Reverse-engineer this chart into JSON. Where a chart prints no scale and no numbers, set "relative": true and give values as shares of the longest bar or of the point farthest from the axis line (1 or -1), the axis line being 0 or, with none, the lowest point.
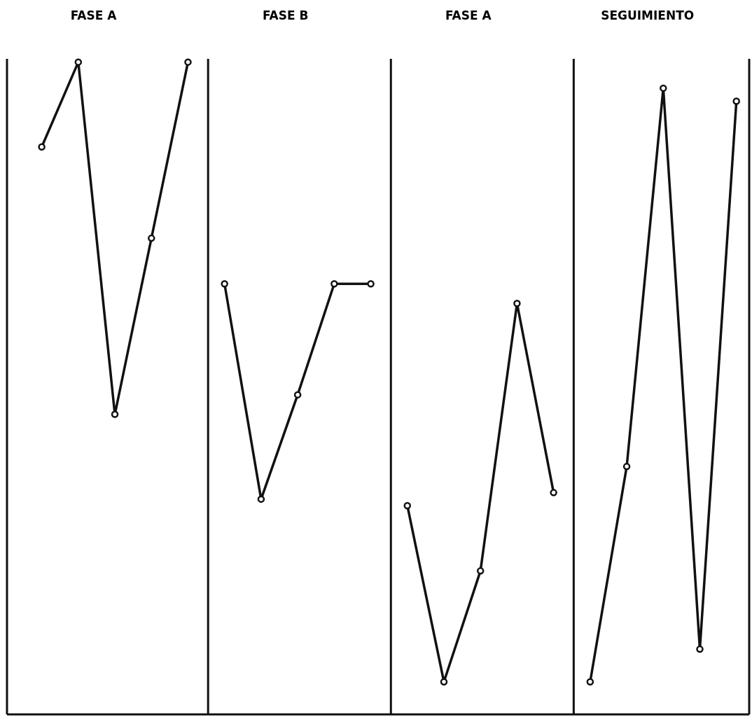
{
  "chart_data": {
    "type": "line",
    "relative": true,
    "marker": "circle",
    "line_style": "solid",
    "annotations": [
      "FASE A",
      "FASE B",
      "FASE A",
      "SEGUIMIENTO"
    ],
    "categories": [
      null,
      null,
      null,
      null,
      null,
      null,
      null,
      null,
      null,
      null,
      null,
      null,
      null,
      null,
      null,
      null,
      null,
      null,
      null,
      null
    ],
    "series": [
      {
        "color": "#111111",
        "values": [
          0.87,
          1.0,
          0.46,
          0.73,
          1.0,
          null,
          null,
          null,
          null,
          null,
          null,
          null,
          null,
          null,
          null,
          null,
          null,
          null,
          null,
          null
        ]
      },
      {
        "color": "#111111",
        "values": [
          null,
          null,
          null,
          null,
          null,
          0.66,
          0.33,
          0.49,
          0.66,
          0.66,
          null,
          null,
          null,
          null,
          null,
          null,
          null,
          null,
          null,
          null
        ]
      },
      {
        "color": "#111111",
        "values": [
          null,
          null,
          null,
          null,
          null,
          null,
          null,
          null,
          null,
          null,
          0.32,
          0.05,
          0.22,
          0.63,
          0.34,
          null,
          null,
          null,
          null,
          null
        ]
      },
      {
        "color": "#111111",
        "values": [
          null,
          null,
          null,
          null,
          null,
          null,
          null,
          null,
          null,
          null,
          null,
          null,
          null,
          null,
          null,
          0.05,
          0.38,
          0.96,
          0.1,
          0.94
        ]
      }
    ]
  }
}
